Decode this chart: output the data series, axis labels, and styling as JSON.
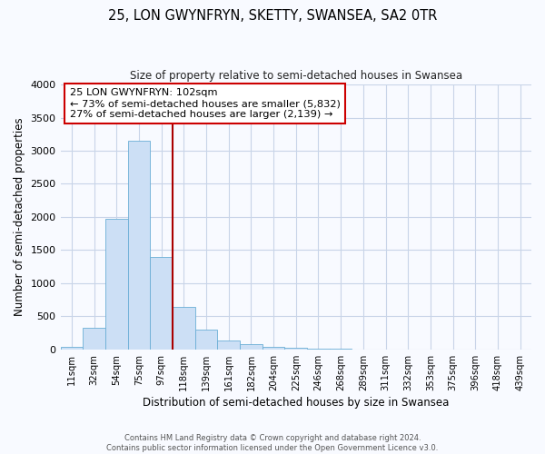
{
  "title": "25, LON GWYNFRYN, SKETTY, SWANSEA, SA2 0TR",
  "subtitle": "Size of property relative to semi-detached houses in Swansea",
  "xlabel": "Distribution of semi-detached houses by size in Swansea",
  "ylabel": "Number of semi-detached properties",
  "bar_labels": [
    "11sqm",
    "32sqm",
    "54sqm",
    "75sqm",
    "97sqm",
    "118sqm",
    "139sqm",
    "161sqm",
    "182sqm",
    "204sqm",
    "225sqm",
    "246sqm",
    "268sqm",
    "289sqm",
    "311sqm",
    "332sqm",
    "353sqm",
    "375sqm",
    "396sqm",
    "418sqm",
    "439sqm"
  ],
  "bar_values": [
    45,
    320,
    1970,
    3150,
    1390,
    640,
    300,
    130,
    80,
    40,
    25,
    8,
    5,
    2,
    1,
    0,
    0,
    0,
    0,
    0,
    0
  ],
  "bar_color": "#ccdff5",
  "bar_edge_color": "#6aaed6",
  "vline_color": "#aa0000",
  "annotation_title": "25 LON GWYNFRYN: 102sqm",
  "annotation_line1": "← 73% of semi-detached houses are smaller (5,832)",
  "annotation_line2": "27% of semi-detached houses are larger (2,139) →",
  "annotation_box_color": "#ffffff",
  "annotation_box_edge": "#cc0000",
  "footer1": "Contains HM Land Registry data © Crown copyright and database right 2024.",
  "footer2": "Contains public sector information licensed under the Open Government Licence v3.0.",
  "ylim": [
    0,
    4000
  ],
  "yticks": [
    0,
    500,
    1000,
    1500,
    2000,
    2500,
    3000,
    3500,
    4000
  ],
  "bg_color": "#f8faff",
  "grid_color": "#c8d4e8"
}
